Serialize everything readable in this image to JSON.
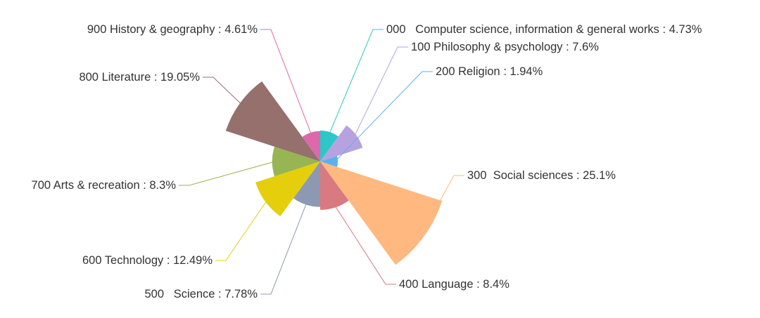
{
  "chart_data": {
    "type": "pie",
    "variant": "nightingale-rose",
    "title": "",
    "slices": [
      {
        "label": "000   Computer science, information & general works : 4.73%",
        "category": "000 Computer science, information & general works",
        "value": 4.73,
        "color": "#2ec7c9"
      },
      {
        "label": "100 Philosophy & psychology : 7.6%",
        "category": "100 Philosophy & psychology",
        "value": 7.6,
        "color": "#b6a2de"
      },
      {
        "label": "200 Religion : 1.94%",
        "category": "200 Religion",
        "value": 1.94,
        "color": "#5ab1ef"
      },
      {
        "label": "300  Social sciences : 25.1%",
        "category": "300 Social sciences",
        "value": 25.1,
        "color": "#ffb980"
      },
      {
        "label": "400 Language : 8.4%",
        "category": "400 Language",
        "value": 8.4,
        "color": "#d87a80"
      },
      {
        "label": "500   Science : 7.78%",
        "category": "500 Science",
        "value": 7.78,
        "color": "#8d98b3"
      },
      {
        "label": "600 Technology : 12.49%",
        "category": "600 Technology",
        "value": 12.49,
        "color": "#e5cf0d"
      },
      {
        "label": "700 Arts & recreation : 8.3%",
        "category": "700 Arts & recreation",
        "value": 8.3,
        "color": "#97b552"
      },
      {
        "label": "800 Literature : 19.05%",
        "category": "800 Literature",
        "value": 19.05,
        "color": "#95706d"
      },
      {
        "label": "900 History & geography : 4.61%",
        "category": "900 History & geography",
        "value": 4.61,
        "color": "#dc69aa"
      }
    ]
  }
}
